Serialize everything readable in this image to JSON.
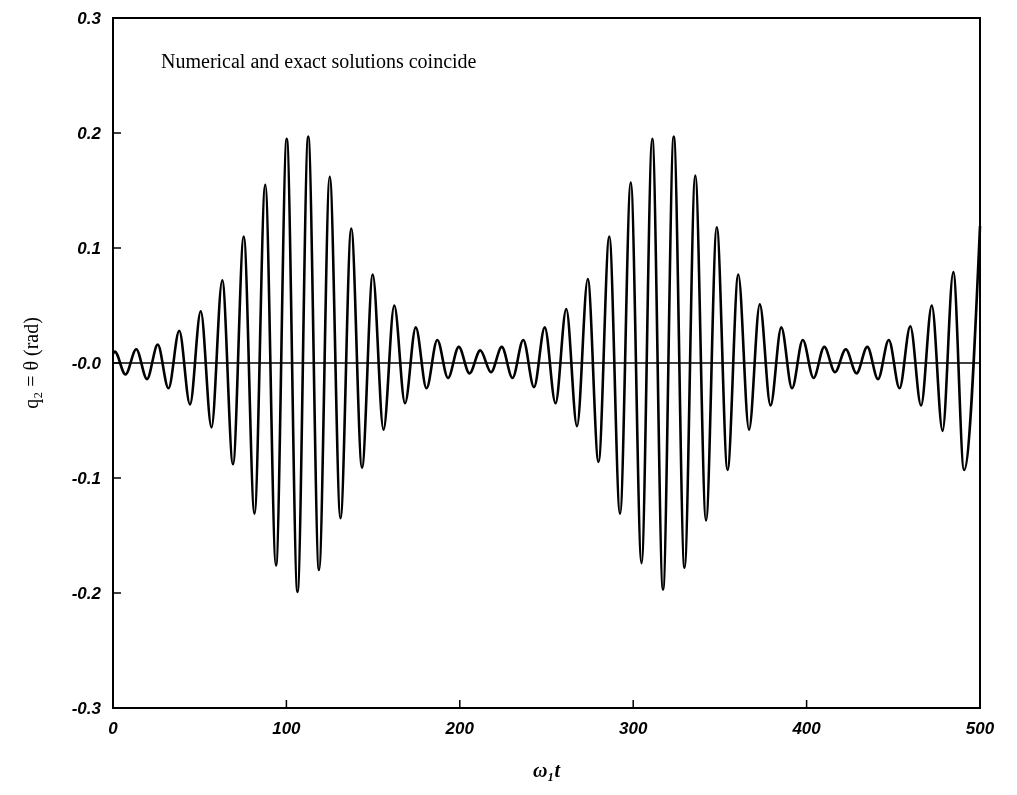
{
  "chart_data": {
    "type": "line",
    "xlabel": "ω₁t",
    "ylabel": "q₂ = θ (rad)",
    "annotations": [
      "Numerical and exact solutions coincide"
    ],
    "xlim": [
      0,
      500
    ],
    "xticks": [
      0,
      100,
      200,
      300,
      400,
      500
    ],
    "ylim": [
      -0.3,
      0.3
    ],
    "yticks": [
      0.3,
      0.2,
      0.1,
      {
        "value": 0,
        "label": "-0.0"
      },
      -0.1,
      -0.2,
      -0.3
    ],
    "ref_lines": [
      {
        "axis": "y",
        "value": 0,
        "color": "#000000"
      }
    ],
    "marker": "none",
    "line_style": "solid",
    "series": [
      {
        "color": "#000000",
        "x": [
          0,
          1.0,
          7.2,
          13.4,
          19.6,
          25.8,
          32.0,
          38.2,
          44.4,
          50.6,
          56.8,
          63.0,
          69.2,
          75.4,
          81.6,
          87.8,
          94.0,
          100.2,
          106.4,
          112.6,
          118.8,
          125.0,
          131.2,
          137.4,
          143.6,
          149.8,
          156.0,
          162.2,
          168.4,
          174.6,
          180.8,
          187.0,
          193.2,
          199.4,
          205.6,
          211.8,
          218.0,
          224.2,
          230.4,
          236.6,
          242.8,
          249.0,
          255.2,
          261.4,
          267.6,
          273.8,
          280.0,
          286.2,
          292.4,
          298.6,
          304.8,
          311.0,
          317.2,
          323.4,
          329.6,
          335.8,
          342.0,
          348.2,
          354.4,
          360.6,
          366.8,
          373.0,
          379.2,
          385.4,
          391.6,
          397.8,
          404.0,
          410.2,
          416.4,
          422.6,
          428.8,
          435.0,
          441.2,
          447.4,
          453.6,
          459.8,
          466.0,
          472.2,
          478.4,
          484.6,
          490.8,
          500
        ],
        "values": [
          0.008,
          0.01,
          -0.01,
          0.012,
          -0.014,
          0.016,
          -0.022,
          0.028,
          -0.036,
          0.045,
          -0.056,
          0.072,
          -0.088,
          0.11,
          -0.131,
          0.155,
          -0.176,
          0.195,
          -0.199,
          0.197,
          -0.18,
          0.162,
          -0.135,
          0.117,
          -0.091,
          0.077,
          -0.058,
          0.05,
          -0.035,
          0.031,
          -0.022,
          0.02,
          -0.013,
          0.014,
          -0.009,
          0.011,
          -0.008,
          0.014,
          -0.013,
          0.02,
          -0.021,
          0.031,
          -0.035,
          0.047,
          -0.055,
          0.073,
          -0.086,
          0.11,
          -0.131,
          0.157,
          -0.174,
          0.195,
          -0.197,
          0.197,
          -0.178,
          0.163,
          -0.137,
          0.118,
          -0.093,
          0.077,
          -0.058,
          0.051,
          -0.037,
          0.031,
          -0.022,
          0.02,
          -0.013,
          0.014,
          -0.008,
          0.012,
          -0.009,
          0.014,
          -0.014,
          0.02,
          -0.022,
          0.032,
          -0.037,
          0.05,
          -0.059,
          0.079,
          -0.093,
          0.119
        ]
      }
    ]
  }
}
